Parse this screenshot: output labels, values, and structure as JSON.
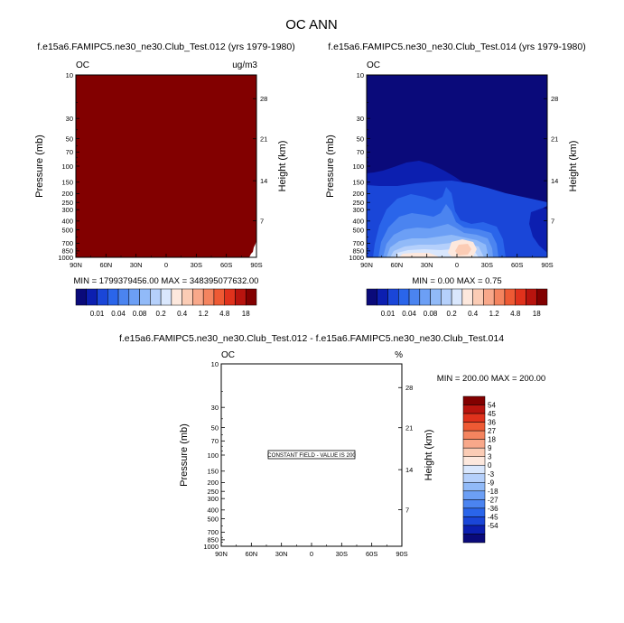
{
  "figure": {
    "title": "OC ANN"
  },
  "colors": {
    "palette": [
      "#0a0a7a",
      "#0c1fb0",
      "#1a46d8",
      "#2a65ea",
      "#4b84f0",
      "#6c9ff5",
      "#91baf8",
      "#b5d0fb",
      "#d9e7fd",
      "#fde8dd",
      "#fbccb5",
      "#f8a88a",
      "#f4845f",
      "#ee5a34",
      "#e0321c",
      "#b8140e",
      "#820000"
    ],
    "dark_red": "#820000",
    "dark_blue": "#0a0a7a"
  },
  "chart_data": [
    {
      "type": "heatmap",
      "title": "f.e15a6.FAMIPC5.ne30_ne30.Club_Test.012 (yrs 1979-1980)",
      "left_label": "OC",
      "right_label": "ug/m3",
      "ylabel": "Pressure (mb)",
      "ylabel_right": "Height (km)",
      "x_ticks": [
        "90N",
        "60N",
        "30N",
        "0",
        "30S",
        "60S",
        "90S"
      ],
      "y_ticks": [
        "10",
        "30",
        "50",
        "70",
        "100",
        "150",
        "200",
        "250",
        "300",
        "400",
        "500",
        "700",
        "850",
        "1000"
      ],
      "y_ticks_right": [
        "28",
        "21",
        "14",
        "7"
      ],
      "stats": "MIN = 1799379456.00   MAX = 348395077632.00",
      "field": "uniform maximum (all values exceed top color level)",
      "colorbar_labels": [
        "0.01",
        "0.04",
        "0.08",
        "0.2",
        "0.4",
        "1.2",
        "4.8",
        "18"
      ]
    },
    {
      "type": "heatmap",
      "title": "f.e15a6.FAMIPC5.ne30_ne30.Club_Test.014 (yrs 1979-1980)",
      "left_label": "OC",
      "right_label": "",
      "ylabel": "Pressure (mb)",
      "ylabel_right": "Height (km)",
      "x_ticks": [
        "90N",
        "60N",
        "30N",
        "0",
        "30S",
        "60S",
        "90S"
      ],
      "y_ticks": [
        "10",
        "30",
        "50",
        "70",
        "100",
        "150",
        "200",
        "250",
        "300",
        "400",
        "500",
        "700",
        "850",
        "1000"
      ],
      "y_ticks_right": [
        "28",
        "21",
        "14",
        "7"
      ],
      "stats": "MIN =   0.00   MAX =   0.75",
      "colorbar_labels": [
        "0.01",
        "0.04",
        "0.08",
        "0.2",
        "0.4",
        "1.2",
        "4.8",
        "18"
      ]
    },
    {
      "type": "heatmap",
      "title": "f.e15a6.FAMIPC5.ne30_ne30.Club_Test.012 - f.e15a6.FAMIPC5.ne30_ne30.Club_Test.014",
      "left_label": "OC",
      "right_label": "%",
      "ylabel": "Pressure (mb)",
      "ylabel_right": "Height (km)",
      "x_ticks": [
        "90N",
        "60N",
        "30N",
        "0",
        "30S",
        "60S",
        "90S"
      ],
      "y_ticks": [
        "10",
        "30",
        "50",
        "70",
        "100",
        "150",
        "200",
        "250",
        "300",
        "400",
        "500",
        "700",
        "850",
        "1000"
      ],
      "y_ticks_right": [
        "28",
        "21",
        "14",
        "7"
      ],
      "stats": "MIN = 200.00   MAX = 200.00",
      "annotation": "CONSTANT FIELD - VALUE IS 200",
      "colorbar_labels": [
        "54",
        "45",
        "36",
        "27",
        "18",
        "9",
        "3",
        "0",
        "-3",
        "-9",
        "-18",
        "-27",
        "-36",
        "-45",
        "-54"
      ]
    }
  ]
}
